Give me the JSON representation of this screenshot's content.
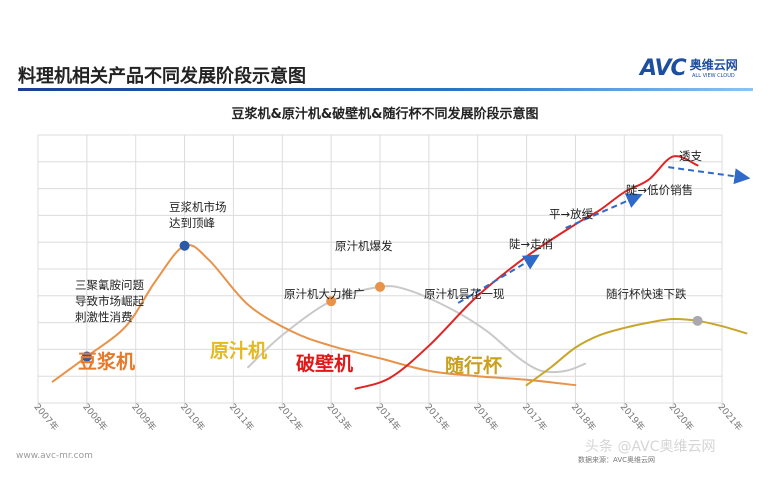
{
  "header": {
    "title": "料理机相关产品不同发展阶段示意图",
    "logo_mark": "AVC",
    "logo_cn": "奥维云网",
    "logo_en": "ALL VIEW CLOUD"
  },
  "footer": {
    "source": "www.avc-mr.com",
    "watermark": "头条 @AVC奥维云网",
    "note": "数据来源：AVC奥维云网"
  },
  "colors": {
    "soymilk": "#e8934a",
    "juicer": "#c9c9c9",
    "blender": "#e02424",
    "portable": "#c9a52a",
    "dots": "#2a5aa8",
    "arrows": "#2f6ac9",
    "grid": "#dcdcdc",
    "label_soymilk": "#e8792a",
    "label_juicer": "#e6b822",
    "label_blender": "#e01818",
    "label_portable": "#c9a020"
  },
  "chart_data": {
    "type": "line",
    "title": "豆浆机&原汁机&破壁机&随行杯不同发展阶段示意图",
    "xlabel": "",
    "ylabel": "",
    "x": [
      "2007年",
      "2008年",
      "2009年",
      "2010年",
      "2011年",
      "2012年",
      "2013年",
      "2014年",
      "2015年",
      "2016年",
      "2017年",
      "2018年",
      "2019年",
      "2020年",
      "2021年"
    ],
    "grid": true,
    "series": [
      {
        "name": "豆浆机",
        "points": [
          [
            0.3,
            12
          ],
          [
            1,
            26
          ],
          [
            1.8,
            43
          ],
          [
            2.4,
            68
          ],
          [
            3,
            88
          ],
          [
            3.5,
            80
          ],
          [
            4.3,
            55
          ],
          [
            5.2,
            40
          ],
          [
            6,
            32
          ],
          [
            7,
            25
          ],
          [
            8,
            18
          ],
          [
            9,
            15
          ],
          [
            10,
            13
          ],
          [
            11,
            10
          ]
        ]
      },
      {
        "name": "原汁机",
        "points": [
          [
            4.3,
            20
          ],
          [
            5,
            38
          ],
          [
            6,
            57
          ],
          [
            7,
            65
          ],
          [
            7.6,
            63
          ],
          [
            8.5,
            52
          ],
          [
            9.2,
            40
          ],
          [
            9.8,
            26
          ],
          [
            10.3,
            18
          ],
          [
            10.8,
            18
          ],
          [
            11.2,
            22
          ]
        ]
      },
      {
        "name": "破壁机",
        "points": [
          [
            6.5,
            8
          ],
          [
            7.2,
            14
          ],
          [
            8,
            32
          ],
          [
            9,
            60
          ],
          [
            10,
            82
          ],
          [
            11,
            100
          ],
          [
            11.5,
            108
          ],
          [
            12,
            118
          ],
          [
            12.5,
            125
          ],
          [
            13,
            138
          ],
          [
            13.5,
            133
          ]
        ]
      },
      {
        "name": "随行杯",
        "points": [
          [
            10,
            10
          ],
          [
            10.5,
            20
          ],
          [
            11,
            31
          ],
          [
            11.5,
            38
          ],
          [
            12,
            42
          ],
          [
            12.5,
            45
          ],
          [
            13,
            47
          ],
          [
            13.5,
            46
          ],
          [
            14,
            43
          ],
          [
            14.5,
            39
          ]
        ]
      }
    ],
    "markers": [
      {
        "series": "豆浆机",
        "x": 1,
        "y": 26,
        "color": "#2a5aa8"
      },
      {
        "series": "豆浆机",
        "x": 3,
        "y": 88,
        "color": "#2a5aa8"
      },
      {
        "series": "原汁机",
        "x": 6,
        "y": 57,
        "color": "#e8934a"
      },
      {
        "series": "原汁机",
        "x": 7,
        "y": 65,
        "color": "#e8934a"
      },
      {
        "series": "随行杯",
        "x": 13.5,
        "y": 46,
        "color": "#a9a9a9"
      }
    ],
    "trend_arrows": [
      {
        "from": [
          8.6,
          56
        ],
        "to": [
          10.2,
          82
        ]
      },
      {
        "from": [
          10.8,
          98
        ],
        "to": [
          12.3,
          116
        ]
      },
      {
        "from": [
          12.9,
          132
        ],
        "to": [
          14.5,
          126
        ]
      }
    ],
    "series_labels": [
      "豆浆机",
      "原汁机",
      "破壁机",
      "随行杯"
    ],
    "annotations": [
      {
        "lines": [
          "三聚氰胺问题",
          "导致市场崛起",
          "刺激性消费"
        ]
      },
      {
        "lines": [
          "豆浆机市场",
          "达到顶峰"
        ]
      },
      {
        "lines": [
          "原汁机大力推广"
        ]
      },
      {
        "lines": [
          "原汁机爆发"
        ]
      },
      {
        "lines": [
          "原汁机昙花一现"
        ]
      },
      {
        "lines": [
          "陡→走俏"
        ]
      },
      {
        "lines": [
          "平→放缓"
        ]
      },
      {
        "lines": [
          "陡→低价销售"
        ]
      },
      {
        "lines": [
          "透支"
        ]
      },
      {
        "lines": [
          "随行杯快速下跌"
        ]
      }
    ]
  }
}
